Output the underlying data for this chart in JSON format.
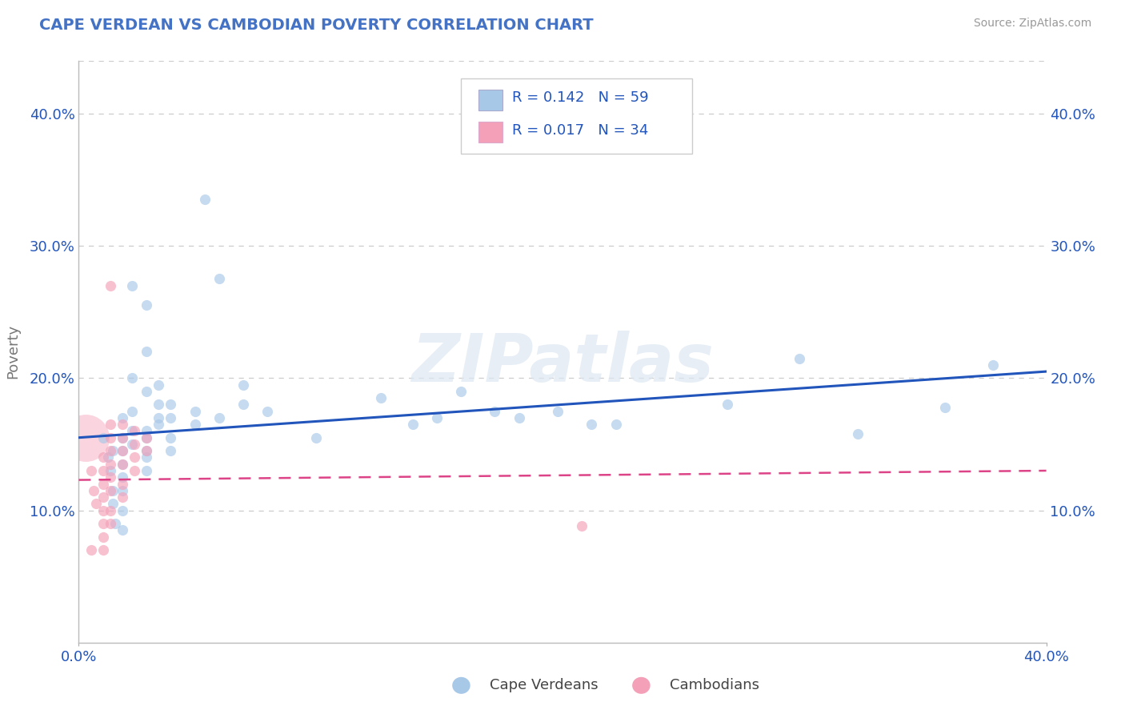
{
  "title": "CAPE VERDEAN VS CAMBODIAN POVERTY CORRELATION CHART",
  "source": "Source: ZipAtlas.com",
  "ylabel": "Poverty",
  "xlim": [
    0.0,
    0.4
  ],
  "ylim": [
    0.0,
    0.44
  ],
  "y_ticks": [
    0.1,
    0.2,
    0.3,
    0.4
  ],
  "y_tick_labels": [
    "10.0%",
    "20.0%",
    "30.0%",
    "40.0%"
  ],
  "r_cape_verdean": 0.142,
  "n_cape_verdean": 59,
  "r_cambodian": 0.017,
  "n_cambodian": 34,
  "legend_labels": [
    "Cape Verdeans",
    "Cambodians"
  ],
  "blue_color": "#a8c8e8",
  "pink_color": "#f4a0b8",
  "blue_line_color": "#2255bb",
  "pink_line_color": "#dd4488",
  "title_color": "#4472c4",
  "watermark": "ZIPatlas",
  "cv_trend_x0": 0.0,
  "cv_trend_y0": 0.155,
  "cv_trend_x1": 0.4,
  "cv_trend_y1": 0.205,
  "cam_trend_x0": 0.0,
  "cam_trend_y0": 0.123,
  "cam_trend_x1": 0.4,
  "cam_trend_y1": 0.13,
  "cape_verdean_points": [
    [
      0.01,
      0.155
    ],
    [
      0.012,
      0.14
    ],
    [
      0.013,
      0.13
    ],
    [
      0.014,
      0.145
    ],
    [
      0.014,
      0.115
    ],
    [
      0.014,
      0.105
    ],
    [
      0.015,
      0.09
    ],
    [
      0.018,
      0.17
    ],
    [
      0.018,
      0.155
    ],
    [
      0.018,
      0.145
    ],
    [
      0.018,
      0.135
    ],
    [
      0.018,
      0.125
    ],
    [
      0.018,
      0.115
    ],
    [
      0.018,
      0.1
    ],
    [
      0.018,
      0.085
    ],
    [
      0.022,
      0.27
    ],
    [
      0.022,
      0.2
    ],
    [
      0.022,
      0.175
    ],
    [
      0.022,
      0.16
    ],
    [
      0.022,
      0.15
    ],
    [
      0.028,
      0.255
    ],
    [
      0.028,
      0.22
    ],
    [
      0.028,
      0.19
    ],
    [
      0.028,
      0.16
    ],
    [
      0.028,
      0.155
    ],
    [
      0.028,
      0.145
    ],
    [
      0.028,
      0.14
    ],
    [
      0.028,
      0.13
    ],
    [
      0.033,
      0.195
    ],
    [
      0.033,
      0.18
    ],
    [
      0.033,
      0.17
    ],
    [
      0.033,
      0.165
    ],
    [
      0.038,
      0.18
    ],
    [
      0.038,
      0.17
    ],
    [
      0.038,
      0.155
    ],
    [
      0.038,
      0.145
    ],
    [
      0.048,
      0.175
    ],
    [
      0.048,
      0.165
    ],
    [
      0.052,
      0.335
    ],
    [
      0.058,
      0.275
    ],
    [
      0.058,
      0.17
    ],
    [
      0.068,
      0.195
    ],
    [
      0.068,
      0.18
    ],
    [
      0.078,
      0.175
    ],
    [
      0.098,
      0.155
    ],
    [
      0.125,
      0.185
    ],
    [
      0.138,
      0.165
    ],
    [
      0.148,
      0.17
    ],
    [
      0.158,
      0.19
    ],
    [
      0.172,
      0.175
    ],
    [
      0.182,
      0.17
    ],
    [
      0.198,
      0.175
    ],
    [
      0.212,
      0.165
    ],
    [
      0.222,
      0.165
    ],
    [
      0.268,
      0.18
    ],
    [
      0.298,
      0.215
    ],
    [
      0.322,
      0.158
    ],
    [
      0.358,
      0.178
    ],
    [
      0.378,
      0.21
    ]
  ],
  "cambodian_points": [
    [
      0.005,
      0.13
    ],
    [
      0.006,
      0.115
    ],
    [
      0.007,
      0.105
    ],
    [
      0.01,
      0.14
    ],
    [
      0.01,
      0.13
    ],
    [
      0.01,
      0.12
    ],
    [
      0.01,
      0.11
    ],
    [
      0.01,
      0.1
    ],
    [
      0.01,
      0.09
    ],
    [
      0.01,
      0.08
    ],
    [
      0.01,
      0.07
    ],
    [
      0.013,
      0.27
    ],
    [
      0.013,
      0.165
    ],
    [
      0.013,
      0.155
    ],
    [
      0.013,
      0.145
    ],
    [
      0.013,
      0.135
    ],
    [
      0.013,
      0.125
    ],
    [
      0.013,
      0.115
    ],
    [
      0.013,
      0.1
    ],
    [
      0.013,
      0.09
    ],
    [
      0.018,
      0.165
    ],
    [
      0.018,
      0.155
    ],
    [
      0.018,
      0.145
    ],
    [
      0.018,
      0.135
    ],
    [
      0.018,
      0.12
    ],
    [
      0.018,
      0.11
    ],
    [
      0.023,
      0.16
    ],
    [
      0.023,
      0.15
    ],
    [
      0.023,
      0.14
    ],
    [
      0.023,
      0.13
    ],
    [
      0.028,
      0.155
    ],
    [
      0.028,
      0.145
    ],
    [
      0.208,
      0.088
    ],
    [
      0.005,
      0.07
    ]
  ],
  "cambodian_large_bubble": [
    0.003,
    0.155,
    1800
  ],
  "cape_verdean_size": 90,
  "cambodian_size": 90
}
